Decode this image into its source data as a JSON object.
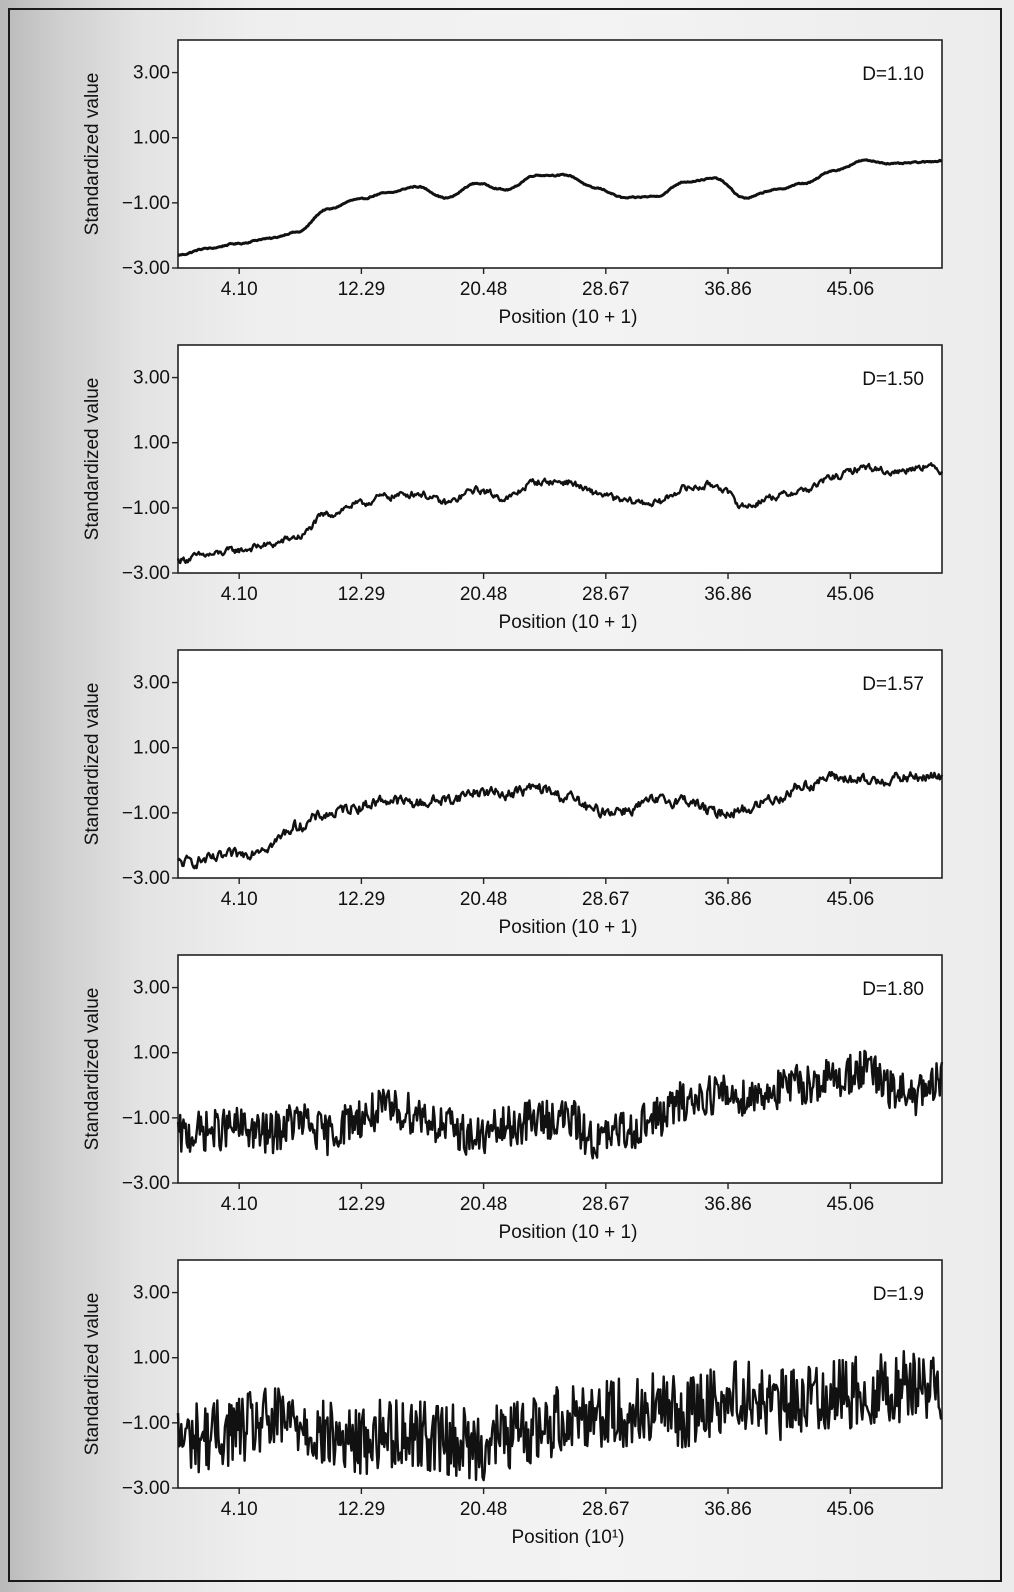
{
  "chart_data": [
    {
      "type": "line",
      "panel_label": "D=1.10",
      "roughness": 0.02,
      "xlabel": "Position (10 + 1)",
      "ylabel": "Standardized value",
      "ylim": [
        -3.0,
        4.0
      ],
      "yticks": [
        "3.00",
        "1.00",
        "−1.00",
        "−3.00"
      ],
      "ytick_values": [
        3.0,
        1.0,
        -1.0,
        -3.0
      ],
      "xticks": [
        "4.10",
        "12.29",
        "20.48",
        "28.67",
        "36.86",
        "45.06"
      ],
      "xtick_values": [
        4.1,
        12.29,
        20.48,
        28.67,
        36.86,
        45.06
      ],
      "xlim": [
        0,
        51.2
      ],
      "series": [
        {
          "x": [
            0,
            2,
            4,
            6,
            8,
            10,
            12,
            14,
            16,
            18,
            20,
            22,
            24,
            26,
            28,
            30,
            32,
            34,
            36,
            38,
            40,
            42,
            44,
            46,
            48,
            50,
            51.2
          ],
          "y": [
            -2.6,
            -2.4,
            -2.25,
            -2.1,
            -1.9,
            -1.2,
            -0.9,
            -0.7,
            -0.5,
            -0.85,
            -0.4,
            -0.6,
            -0.15,
            -0.15,
            -0.55,
            -0.85,
            -0.8,
            -0.35,
            -0.25,
            -0.85,
            -0.6,
            -0.4,
            0.0,
            0.3,
            0.2,
            0.25,
            0.3
          ]
        }
      ]
    },
    {
      "type": "line",
      "panel_label": "D=1.50",
      "roughness": 0.1,
      "xlabel": "Position (10 + 1)",
      "ylabel": "Standardized value",
      "ylim": [
        -3.0,
        4.0
      ],
      "yticks": [
        "3.00",
        "1.00",
        "−1.00",
        "−3.00"
      ],
      "ytick_values": [
        3.0,
        1.0,
        -1.0,
        -3.0
      ],
      "xticks": [
        "4.10",
        "12.29",
        "20.48",
        "28.67",
        "36.86",
        "45.06"
      ],
      "xtick_values": [
        4.1,
        12.29,
        20.48,
        28.67,
        36.86,
        45.06
      ],
      "xlim": [
        0,
        51.2
      ],
      "series": [
        {
          "x": [
            0,
            2,
            4,
            6,
            8,
            10,
            12,
            14,
            16,
            18,
            20,
            22,
            24,
            26,
            28,
            30,
            32,
            34,
            36,
            38,
            40,
            42,
            44,
            46,
            48,
            50,
            51.2
          ],
          "y": [
            -2.6,
            -2.45,
            -2.3,
            -2.15,
            -1.9,
            -1.2,
            -0.9,
            -0.65,
            -0.55,
            -0.85,
            -0.45,
            -0.7,
            -0.2,
            -0.2,
            -0.55,
            -0.8,
            -0.85,
            -0.4,
            -0.3,
            -0.95,
            -0.65,
            -0.45,
            -0.05,
            0.25,
            0.1,
            0.3,
            0.15
          ]
        }
      ]
    },
    {
      "type": "line",
      "panel_label": "D=1.57",
      "roughness": 0.16,
      "xlabel": "Position (10 + 1)",
      "ylabel": "Standardized value",
      "ylim": [
        -3.0,
        4.0
      ],
      "yticks": [
        "3.00",
        "1.00",
        "−1.00",
        "−3.00"
      ],
      "ytick_values": [
        3.0,
        1.0,
        -1.0,
        -3.0
      ],
      "xticks": [
        "4.10",
        "12.29",
        "20.48",
        "28.67",
        "36.86",
        "45.06"
      ],
      "xtick_values": [
        4.1,
        12.29,
        20.48,
        28.67,
        36.86,
        45.06
      ],
      "xlim": [
        0,
        51.2
      ],
      "series": [
        {
          "x": [
            0,
            2,
            4,
            6,
            8,
            10,
            12,
            14,
            16,
            18,
            20,
            22,
            24,
            26,
            28,
            30,
            32,
            34,
            36,
            38,
            40,
            42,
            44,
            46,
            48,
            50,
            51.2
          ],
          "y": [
            -2.55,
            -2.45,
            -2.3,
            -2.0,
            -1.4,
            -1.05,
            -0.8,
            -0.6,
            -0.7,
            -0.6,
            -0.35,
            -0.4,
            -0.25,
            -0.5,
            -0.95,
            -0.9,
            -0.65,
            -0.6,
            -1.0,
            -0.9,
            -0.55,
            -0.15,
            0.1,
            -0.05,
            0.05,
            0.1,
            0.1
          ]
        }
      ]
    },
    {
      "type": "line",
      "panel_label": "D=1.80",
      "roughness": 0.32,
      "xlabel": "Position (10 + 1)",
      "ylabel": "Standardized value",
      "ylim": [
        -3.0,
        4.0
      ],
      "yticks": [
        "3.00",
        "1.00",
        "−1.00",
        "−3.00"
      ],
      "ytick_values": [
        3.0,
        1.0,
        -1.0,
        -3.0
      ],
      "xticks": [
        "4.10",
        "12.29",
        "20.48",
        "28.67",
        "36.86",
        "45.06"
      ],
      "xtick_values": [
        4.1,
        12.29,
        20.48,
        28.67,
        36.86,
        45.06
      ],
      "xlim": [
        0,
        51.2
      ],
      "series": [
        {
          "x": [
            0,
            2,
            4,
            6,
            8,
            10,
            12,
            14,
            16,
            18,
            20,
            22,
            24,
            26,
            28,
            30,
            32,
            34,
            36,
            38,
            40,
            42,
            44,
            46,
            48,
            50,
            51.2
          ],
          "y": [
            -1.55,
            -1.4,
            -1.3,
            -1.5,
            -1.1,
            -1.5,
            -1.0,
            -0.75,
            -0.85,
            -1.3,
            -1.6,
            -1.3,
            -1.05,
            -1.0,
            -1.7,
            -1.4,
            -1.0,
            -0.5,
            -0.25,
            -0.35,
            -0.15,
            0.05,
            0.2,
            0.5,
            -0.2,
            -0.3,
            0.15
          ]
        }
      ]
    },
    {
      "type": "line",
      "panel_label": "D=1.9",
      "roughness": 0.55,
      "xlabel": "Position (10¹)",
      "ylabel": "Standardized value",
      "ylim": [
        -3.0,
        4.0
      ],
      "yticks": [
        "3.00",
        "1.00",
        "−1.00",
        "−3.00"
      ],
      "ytick_values": [
        3.0,
        1.0,
        -1.0,
        -3.0
      ],
      "xticks": [
        "4.10",
        "12.29",
        "20.48",
        "28.67",
        "36.86",
        "45.06"
      ],
      "xtick_values": [
        4.1,
        12.29,
        20.48,
        28.67,
        36.86,
        45.06
      ],
      "xlim": [
        0,
        51.2
      ],
      "series": [
        {
          "x": [
            0,
            2,
            4,
            6,
            8,
            10,
            12,
            14,
            16,
            18,
            20,
            22,
            24,
            26,
            28,
            30,
            32,
            34,
            36,
            38,
            40,
            42,
            44,
            46,
            48,
            50,
            51.2
          ],
          "y": [
            -1.5,
            -1.4,
            -1.2,
            -1.0,
            -0.95,
            -1.4,
            -1.6,
            -1.3,
            -1.3,
            -1.5,
            -1.7,
            -1.4,
            -1.2,
            -0.8,
            -0.65,
            -0.7,
            -0.55,
            -0.7,
            -0.3,
            -0.1,
            -0.5,
            -0.25,
            -0.1,
            -0.05,
            0.1,
            0.2,
            0.05
          ]
        }
      ]
    }
  ]
}
